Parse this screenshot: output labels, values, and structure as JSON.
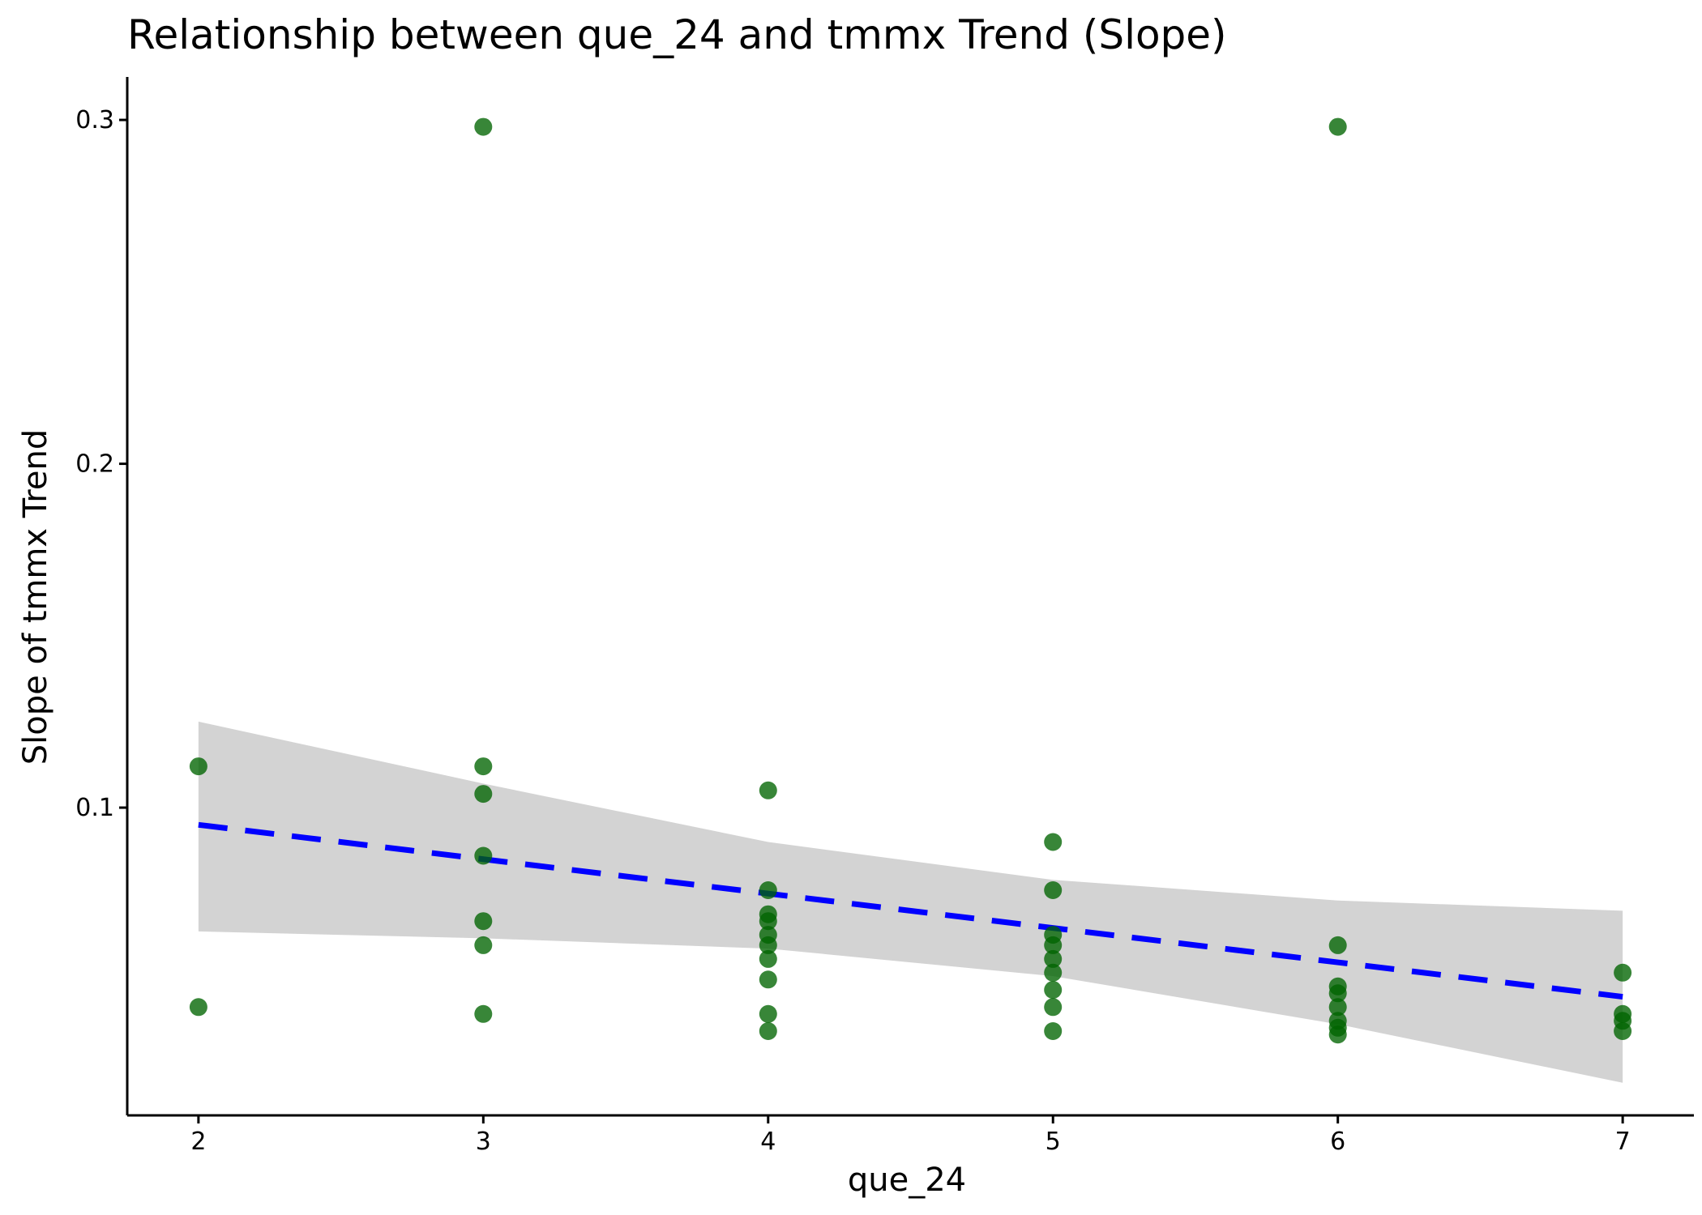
{
  "chart_data": {
    "type": "scatter",
    "title": "Relationship between que_24 and tmmx Trend (Slope)",
    "xlabel": "que_24",
    "ylabel": "Slope of tmmx Trend",
    "xlim": [
      1.75,
      7.25
    ],
    "ylim": [
      0.0105,
      0.3125
    ],
    "x_ticks": [
      2,
      3,
      4,
      5,
      6,
      7
    ],
    "y_ticks": [
      0.1,
      0.2,
      0.3
    ],
    "grid": false,
    "legend": "none",
    "colors": {
      "points": "#006400",
      "trend_line": "#0000ff",
      "confidence_band": "#d3d3d3"
    },
    "points": [
      {
        "x": 2,
        "y": 0.112
      },
      {
        "x": 2,
        "y": 0.042
      },
      {
        "x": 3,
        "y": 0.298
      },
      {
        "x": 3,
        "y": 0.112
      },
      {
        "x": 3,
        "y": 0.104
      },
      {
        "x": 3,
        "y": 0.086
      },
      {
        "x": 3,
        "y": 0.067
      },
      {
        "x": 3,
        "y": 0.06
      },
      {
        "x": 3,
        "y": 0.04
      },
      {
        "x": 4,
        "y": 0.105
      },
      {
        "x": 4,
        "y": 0.076
      },
      {
        "x": 4,
        "y": 0.069
      },
      {
        "x": 4,
        "y": 0.067
      },
      {
        "x": 4,
        "y": 0.063
      },
      {
        "x": 4,
        "y": 0.06
      },
      {
        "x": 4,
        "y": 0.056
      },
      {
        "x": 4,
        "y": 0.05
      },
      {
        "x": 4,
        "y": 0.04
      },
      {
        "x": 4,
        "y": 0.035
      },
      {
        "x": 5,
        "y": 0.09
      },
      {
        "x": 5,
        "y": 0.076
      },
      {
        "x": 5,
        "y": 0.063
      },
      {
        "x": 5,
        "y": 0.06
      },
      {
        "x": 5,
        "y": 0.056
      },
      {
        "x": 5,
        "y": 0.052
      },
      {
        "x": 5,
        "y": 0.047
      },
      {
        "x": 5,
        "y": 0.042
      },
      {
        "x": 5,
        "y": 0.035
      },
      {
        "x": 6,
        "y": 0.298
      },
      {
        "x": 6,
        "y": 0.06
      },
      {
        "x": 6,
        "y": 0.048
      },
      {
        "x": 6,
        "y": 0.046
      },
      {
        "x": 6,
        "y": 0.042
      },
      {
        "x": 6,
        "y": 0.038
      },
      {
        "x": 6,
        "y": 0.036
      },
      {
        "x": 6,
        "y": 0.034
      },
      {
        "x": 7,
        "y": 0.052
      },
      {
        "x": 7,
        "y": 0.04
      },
      {
        "x": 7,
        "y": 0.038
      },
      {
        "x": 7,
        "y": 0.035
      }
    ],
    "trend_line": {
      "style": "dashed",
      "x": [
        2,
        7
      ],
      "y": [
        0.095,
        0.045
      ]
    },
    "confidence_band": {
      "x": [
        2,
        3,
        4,
        5,
        6,
        7
      ],
      "upper": [
        0.125,
        0.107,
        0.09,
        0.079,
        0.073,
        0.07
      ],
      "lower": [
        0.064,
        0.062,
        0.059,
        0.051,
        0.037,
        0.02
      ]
    }
  }
}
